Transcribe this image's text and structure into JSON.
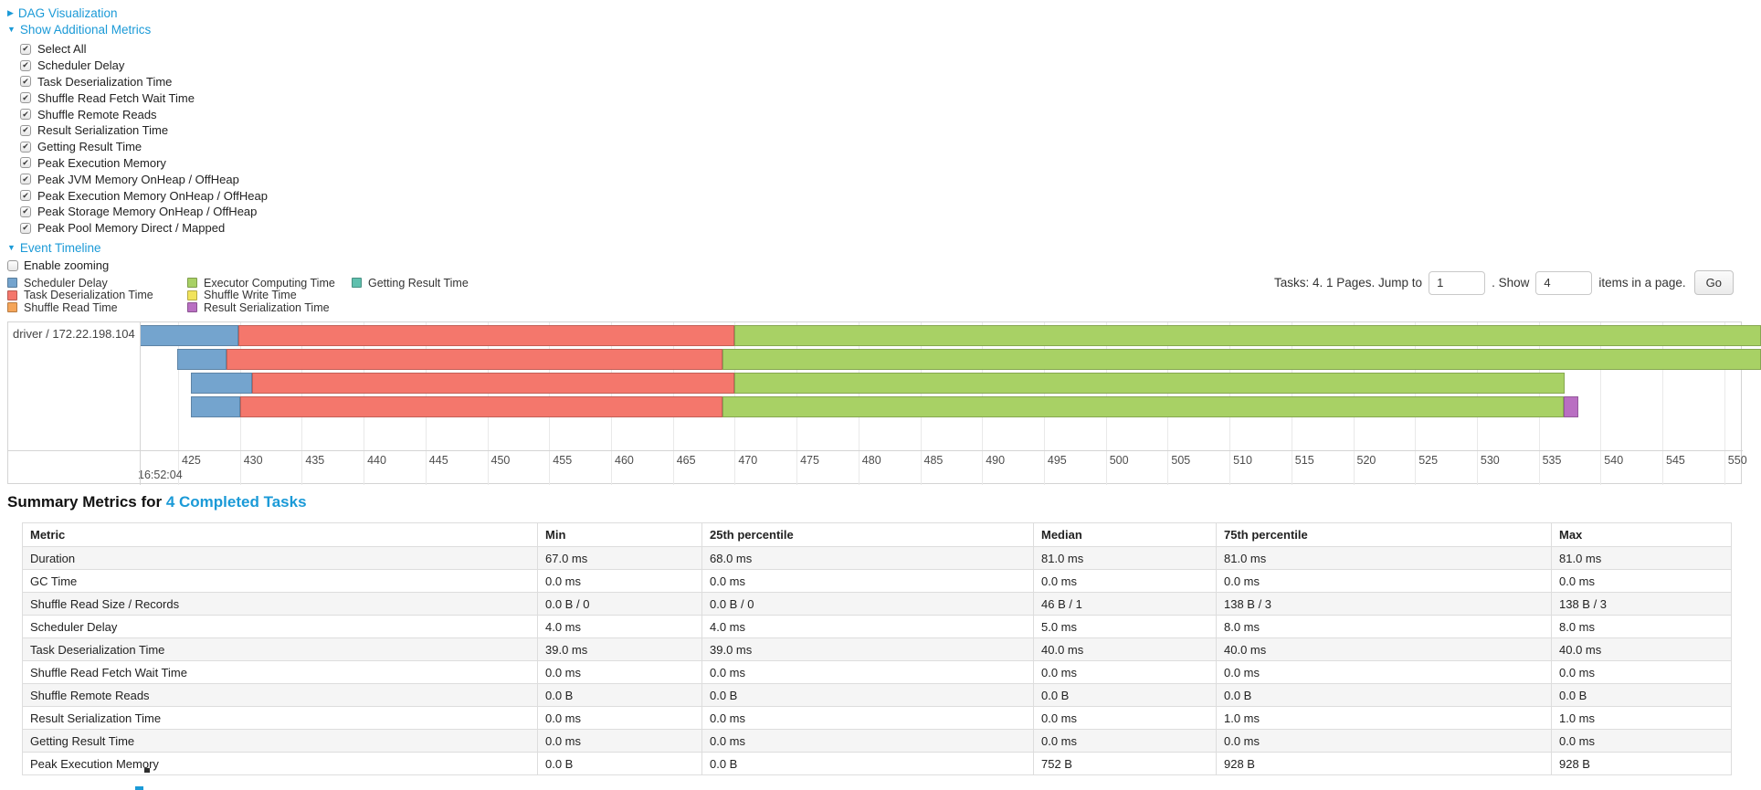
{
  "colors": {
    "link": "#1b9ad7",
    "scheduler_delay": "#74A4CE",
    "task_deserialization_time": "#F4776C",
    "shuffle_read_time": "#F5A559",
    "executor_computing_time": "#A8D165",
    "shuffle_write_time": "#F1E35B",
    "result_serialization_time": "#B96FC2",
    "getting_result_time": "#5FC0AE"
  },
  "toggles": {
    "dag": "DAG Visualization",
    "additional_metrics": "Show Additional Metrics",
    "event_timeline": "Event Timeline",
    "enable_zooming": "Enable zooming"
  },
  "metric_checkboxes": [
    {
      "label": "Select All",
      "checked": true
    },
    {
      "label": "Scheduler Delay",
      "checked": true
    },
    {
      "label": "Task Deserialization Time",
      "checked": true
    },
    {
      "label": "Shuffle Read Fetch Wait Time",
      "checked": true
    },
    {
      "label": "Shuffle Remote Reads",
      "checked": true
    },
    {
      "label": "Result Serialization Time",
      "checked": true
    },
    {
      "label": "Getting Result Time",
      "checked": true
    },
    {
      "label": "Peak Execution Memory",
      "checked": true
    },
    {
      "label": "Peak JVM Memory OnHeap / OffHeap",
      "checked": true
    },
    {
      "label": "Peak Execution Memory OnHeap / OffHeap",
      "checked": true
    },
    {
      "label": "Peak Storage Memory OnHeap / OffHeap",
      "checked": true
    },
    {
      "label": "Peak Pool Memory Direct / Mapped",
      "checked": true
    }
  ],
  "legend": {
    "columns": [
      {
        "width": 197,
        "items": [
          {
            "label": "Scheduler Delay",
            "color_key": "scheduler_delay"
          },
          {
            "label": "Task Deserialization Time",
            "color_key": "task_deserialization_time"
          },
          {
            "label": "Shuffle Read Time",
            "color_key": "shuffle_read_time"
          }
        ]
      },
      {
        "width": 180,
        "items": [
          {
            "label": "Executor Computing Time",
            "color_key": "executor_computing_time"
          },
          {
            "label": "Shuffle Write Time",
            "color_key": "shuffle_write_time"
          },
          {
            "label": "Result Serialization Time",
            "color_key": "result_serialization_time"
          }
        ]
      },
      {
        "width": 160,
        "items": [
          {
            "label": "Getting Result Time",
            "color_key": "getting_result_time"
          }
        ]
      }
    ]
  },
  "pagination": {
    "text_before_jump": "Tasks: 4. 1 Pages. Jump to",
    "jump_value": "1",
    "text_between": ". Show",
    "show_value": "4",
    "text_after": "items in a page.",
    "go_label": "Go"
  },
  "chart_data": {
    "type": "timeline",
    "title": "Event Timeline",
    "group_label": "driver / 172.22.198.104",
    "time_axis": {
      "major_label": "16:52:04",
      "tick_step": 5,
      "ticks": [
        425,
        430,
        435,
        440,
        445,
        450,
        455,
        460,
        465,
        470,
        475,
        480,
        485,
        490,
        495,
        500,
        505,
        510,
        515,
        520,
        525,
        530,
        535,
        540,
        545,
        550
      ]
    },
    "tasks": [
      {
        "segments": [
          {
            "name": "scheduler_delay",
            "start": 421.9,
            "end": 429.9
          },
          {
            "name": "task_deserialization_time",
            "start": 429.9,
            "end": 470.0
          },
          {
            "name": "executor_computing_time",
            "start": 470.0,
            "end": 553.0
          }
        ]
      },
      {
        "segments": [
          {
            "name": "scheduler_delay",
            "start": 424.9,
            "end": 428.9
          },
          {
            "name": "task_deserialization_time",
            "start": 428.9,
            "end": 469.0
          },
          {
            "name": "executor_computing_time",
            "start": 469.0,
            "end": 553.0
          }
        ]
      },
      {
        "segments": [
          {
            "name": "scheduler_delay",
            "start": 426.0,
            "end": 431.0
          },
          {
            "name": "task_deserialization_time",
            "start": 431.0,
            "end": 470.0
          },
          {
            "name": "executor_computing_time",
            "start": 470.0,
            "end": 537.1
          }
        ]
      },
      {
        "segments": [
          {
            "name": "scheduler_delay",
            "start": 426.0,
            "end": 430.0
          },
          {
            "name": "task_deserialization_time",
            "start": 430.0,
            "end": 469.0
          },
          {
            "name": "executor_computing_time",
            "start": 469.0,
            "end": 537.0
          },
          {
            "name": "result_serialization_time",
            "start": 537.0,
            "end": 538.2
          }
        ]
      }
    ]
  },
  "summary": {
    "heading_prefix": "Summary Metrics for ",
    "heading_link": "4 Completed Tasks",
    "table": {
      "headers": [
        "Metric",
        "Min",
        "25th percentile",
        "Median",
        "75th percentile",
        "Max"
      ],
      "rows": [
        {
          "metric": "Duration",
          "values": [
            "67.0 ms",
            "68.0 ms",
            "81.0 ms",
            "81.0 ms",
            "81.0 ms"
          ]
        },
        {
          "metric": "GC Time",
          "values": [
            "0.0 ms",
            "0.0 ms",
            "0.0 ms",
            "0.0 ms",
            "0.0 ms"
          ]
        },
        {
          "metric": "Shuffle Read Size / Records",
          "values": [
            "0.0 B / 0",
            "0.0 B / 0",
            "46 B / 1",
            "138 B / 3",
            "138 B / 3"
          ]
        },
        {
          "metric": "Scheduler Delay",
          "values": [
            "4.0 ms",
            "4.0 ms",
            "5.0 ms",
            "8.0 ms",
            "8.0 ms"
          ]
        },
        {
          "metric": "Task Deserialization Time",
          "values": [
            "39.0 ms",
            "39.0 ms",
            "40.0 ms",
            "40.0 ms",
            "40.0 ms"
          ]
        },
        {
          "metric": "Shuffle Read Fetch Wait Time",
          "values": [
            "0.0 ms",
            "0.0 ms",
            "0.0 ms",
            "0.0 ms",
            "0.0 ms"
          ]
        },
        {
          "metric": "Shuffle Remote Reads",
          "values": [
            "0.0 B",
            "0.0 B",
            "0.0 B",
            "0.0 B",
            "0.0 B"
          ]
        },
        {
          "metric": "Result Serialization Time",
          "values": [
            "0.0 ms",
            "0.0 ms",
            "0.0 ms",
            "1.0 ms",
            "1.0 ms"
          ]
        },
        {
          "metric": "Getting Result Time",
          "values": [
            "0.0 ms",
            "0.0 ms",
            "0.0 ms",
            "0.0 ms",
            "0.0 ms"
          ]
        },
        {
          "metric": "Peak Execution Memory",
          "values": [
            "0.0 B",
            "0.0 B",
            "752 B",
            "928 B",
            "928 B"
          ]
        }
      ]
    }
  }
}
